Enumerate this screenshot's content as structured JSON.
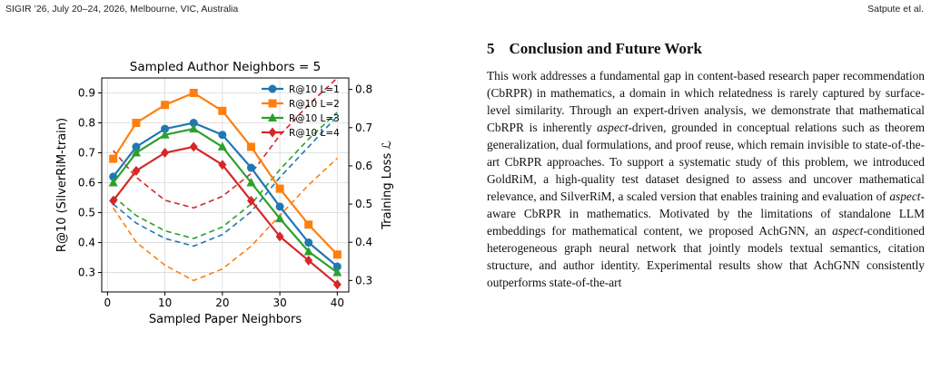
{
  "running_head": {
    "left": "SIGIR ’26, July 20–24, 2026, Melbourne, VIC, Australia",
    "right": "Satpute et al."
  },
  "section": {
    "number": "5",
    "title": "Conclusion and Future Work",
    "paragraph_parts": [
      {
        "t": "This work addresses a fundamental gap in content-based research paper recommendation (CbRPR) in mathematics, a domain in which relatedness is rarely captured by surface-level similarity. Through an expert-driven analysis, we demonstrate that mathematical CbRPR is inherently "
      },
      {
        "t": "aspect",
        "em": true
      },
      {
        "t": "-driven, grounded in conceptual relations such as theorem generalization, dual formulations, and proof reuse, which remain invisible to state-of-the-art CbRPR approaches. To support a systematic study of this problem, we introduced GoldRiM, a high-quality test dataset designed to assess and uncover math­ematical relevance, and SilverRiM, a scaled version that enables training and evaluation of "
      },
      {
        "t": "aspect",
        "em": true
      },
      {
        "t": "-aware CbRPR in mathematics. Mo­tivated by the limitations of standalone LLM embeddings for math­ematical content, we proposed AchGNN, an "
      },
      {
        "t": "aspect",
        "em": true
      },
      {
        "t": "-conditioned heterogeneous graph neural network that jointly models textual semantics, citation structure, and author identity. Experimental re­sults show that AchGNN consistently outperforms state-of-the-art"
      }
    ]
  },
  "chart_data": {
    "type": "line",
    "title": "Sampled Author Neighbors = 5",
    "xlabel": "Sampled Paper Neighbors",
    "ylabel": "R@10 (SilverRiM-train)",
    "y2label": "Training Loss ℒ",
    "xlim": [
      -1,
      42
    ],
    "ylim": [
      0.235,
      0.95
    ],
    "y2lim": [
      0.27,
      0.83
    ],
    "xticks": [
      0,
      10,
      20,
      30,
      40
    ],
    "yticks": [
      0.3,
      0.4,
      0.5,
      0.6,
      0.7,
      0.8,
      0.9
    ],
    "y2ticks": [
      0.3,
      0.4,
      0.5,
      0.6,
      0.7,
      0.8
    ],
    "x": [
      1,
      5,
      10,
      15,
      20,
      25,
      30,
      35,
      40
    ],
    "grid": true,
    "legend_placement": "top-right",
    "series": [
      {
        "name": "R@10 L=1",
        "color": "#1f77b4",
        "marker": "circle",
        "values": [
          0.62,
          0.72,
          0.78,
          0.8,
          0.76,
          0.65,
          0.52,
          0.4,
          0.32
        ]
      },
      {
        "name": "R@10 L=2",
        "color": "#ff7f0e",
        "marker": "square",
        "values": [
          0.68,
          0.8,
          0.86,
          0.9,
          0.84,
          0.72,
          0.58,
          0.46,
          0.36
        ]
      },
      {
        "name": "R@10 L=3",
        "color": "#2ca02c",
        "marker": "triangle",
        "values": [
          0.6,
          0.7,
          0.76,
          0.78,
          0.72,
          0.6,
          0.48,
          0.37,
          0.3
        ]
      },
      {
        "name": "R@10 L=4",
        "color": "#d62728",
        "marker": "diamond",
        "values": [
          0.54,
          0.64,
          0.7,
          0.72,
          0.66,
          0.54,
          0.42,
          0.34,
          0.26
        ]
      }
    ],
    "loss_series": [
      {
        "color": "#1f77b4",
        "values": [
          0.5,
          0.45,
          0.41,
          0.39,
          0.42,
          0.48,
          0.57,
          0.65,
          0.73
        ]
      },
      {
        "color": "#ff7f0e",
        "values": [
          0.49,
          0.4,
          0.34,
          0.3,
          0.33,
          0.39,
          0.47,
          0.55,
          0.62
        ]
      },
      {
        "color": "#2ca02c",
        "values": [
          0.52,
          0.47,
          0.43,
          0.41,
          0.44,
          0.5,
          0.59,
          0.67,
          0.74
        ]
      },
      {
        "color": "#d62728",
        "values": [
          0.64,
          0.57,
          0.51,
          0.49,
          0.52,
          0.58,
          0.68,
          0.76,
          0.83
        ]
      }
    ]
  }
}
